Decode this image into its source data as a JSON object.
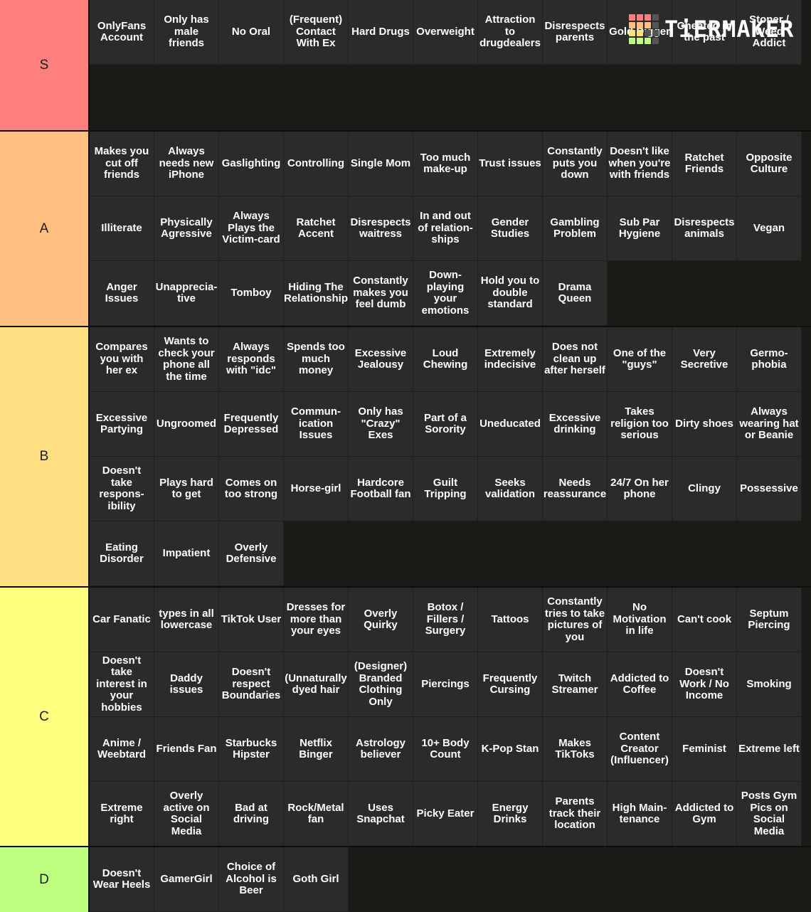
{
  "logo": {
    "text": "TiERMAKER"
  },
  "colors": {
    "S": "#ff7f7f",
    "A": "#ffbf7f",
    "B": "#ffdf7f",
    "C": "#ffff7f",
    "D": "#bfff7f",
    "item_bg": "#2b2b2b",
    "board_bg": "#1a1a17"
  },
  "tiers": [
    {
      "label": "S",
      "items": [
        "OnlyFans Account",
        "Only has male friends",
        "No Oral",
        "(Frequent) Contact With Ex",
        "Hard Drugs",
        "Overweight",
        "Attraction to drugdealers",
        "Disrespects parents",
        "Gold Digger",
        "Cheated in the past",
        "Stoner / Weed Addict"
      ]
    },
    {
      "label": "A",
      "items": [
        "Makes you cut off friends",
        "Always needs new iPhone",
        "Gaslighting",
        "Controlling",
        "Single Mom",
        "Too much make-up",
        "Trust issues",
        "Constantly puts you down",
        "Doesn't like when you're with friends",
        "Ratchet Friends",
        "Opposite Culture",
        "Illiterate",
        "Physically Agressive",
        "Always Plays the Victim-card",
        "Ratchet Accent",
        "Disrespects waitress",
        "In and out of relation-ships",
        "Gender Studies",
        "Gambling Problem",
        "Sub Par Hygiene",
        "Disrespects animals",
        "Vegan",
        "Anger Issues",
        "Unapprecia-tive",
        "Tomboy",
        "Hiding The Relationship",
        "Constantly makes you feel dumb",
        "Down-playing your emotions",
        "Hold you to double standard",
        "Drama Queen"
      ]
    },
    {
      "label": "B",
      "items": [
        "Compares you with her ex",
        "Wants to check your phone all the time",
        "Always responds with \"idc\"",
        "Spends too much money",
        "Excessive Jealousy",
        "Loud Chewing",
        "Extremely indecisive",
        "Does not clean up after herself",
        "One of the \"guys\"",
        "Very Secretive",
        "Germo-phobia",
        "Excessive Partying",
        "Ungroomed",
        "Frequently Depressed",
        "Commun-ication Issues",
        "Only has \"Crazy\" Exes",
        "Part of a Sorority",
        "Uneducated",
        "Excessive drinking",
        "Takes religion too serious",
        "Dirty shoes",
        "Always wearing hat or Beanie",
        "Doesn't take respons-ibility",
        "Plays hard to get",
        "Comes on too strong",
        "Horse-girl",
        "Hardcore Football fan",
        "Guilt Tripping",
        "Seeks validation",
        "Needs reassurance",
        "24/7 On her phone",
        "Clingy",
        "Possessive",
        "Eating Disorder",
        "Impatient",
        "Overly Defensive"
      ]
    },
    {
      "label": "C",
      "items": [
        "Car Fanatic",
        "types in all lowercase",
        "TikTok User",
        "Dresses for more than your eyes",
        "Overly Quirky",
        "Botox / Fillers / Surgery",
        "Tattoos",
        "Constantly tries to take pictures of you",
        "No Motivation in life",
        "Can't cook",
        "Septum Piercing",
        "Doesn't take interest in your hobbies",
        "Daddy issues",
        "Doesn't respect Boundaries",
        "(Unnaturally dyed hair",
        "(Designer) Branded Clothing Only",
        "Piercings",
        "Frequently Cursing",
        "Twitch Streamer",
        "Addicted to Coffee",
        "Doesn't Work / No Income",
        "Smoking",
        "Anime / Weebtard",
        "Friends Fan",
        "Starbucks Hipster",
        "Netflix Binger",
        "Astrology believer",
        "10+ Body Count",
        "K-Pop Stan",
        "Makes TikToks",
        "Content Creator (Influencer)",
        "Feminist",
        "Extreme left",
        "Extreme right",
        "Overly active on Social Media",
        "Bad at driving",
        "Rock/Metal fan",
        "Uses Snapchat",
        "Picky Eater",
        "Energy Drinks",
        "Parents track their location",
        "High Main-tenance",
        "Addicted to Gym",
        "Posts Gym Pics on Social Media"
      ]
    },
    {
      "label": "D",
      "items": [
        "Doesn't Wear Heels",
        "GamerGirl",
        "Choice of Alcohol is Beer",
        "Goth Girl"
      ]
    }
  ]
}
